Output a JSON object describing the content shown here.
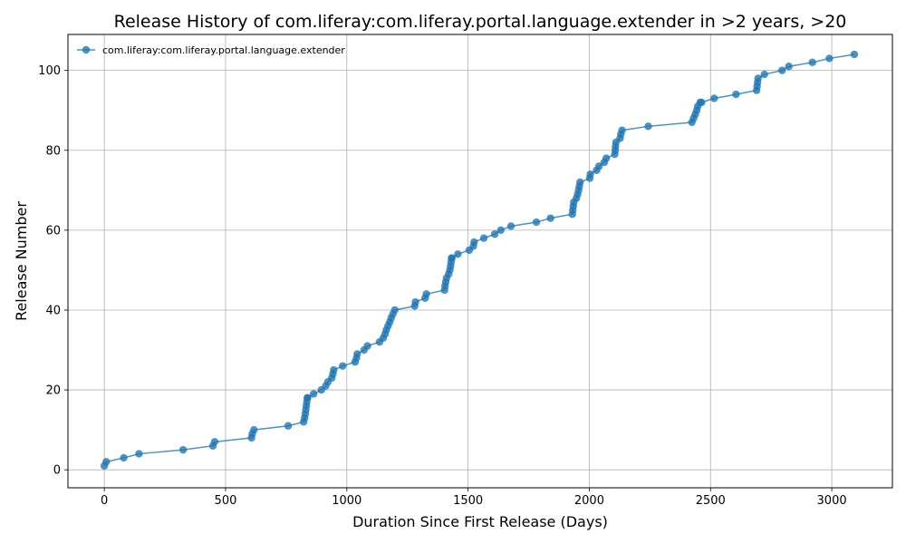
{
  "chart_data": {
    "type": "line",
    "title": "Release History of com.liferay:com.liferay.portal.language.extender in >2 years, >20",
    "xlabel": "Duration Since First Release (Days)",
    "ylabel": "Release Number",
    "xlim": [
      -150,
      3250
    ],
    "ylim": [
      -4.5,
      109
    ],
    "xticks": [
      0,
      500,
      1000,
      1500,
      2000,
      2500,
      3000
    ],
    "yticks": [
      0,
      20,
      40,
      60,
      80,
      100
    ],
    "grid": true,
    "legend_position": "top-left",
    "color": "#1f77b4",
    "series": [
      {
        "name": "com.liferay:com.liferay.portal.language.extender",
        "x": [
          0,
          8,
          80,
          143,
          325,
          448,
          455,
          607,
          610,
          617,
          758,
          822,
          826,
          829,
          831,
          833,
          835,
          837,
          838,
          863,
          895,
          913,
          922,
          938,
          943,
          946,
          983,
          1034,
          1040,
          1043,
          1071,
          1085,
          1135,
          1150,
          1158,
          1163,
          1170,
          1177,
          1183,
          1190,
          1198,
          1280,
          1283,
          1323,
          1328,
          1403,
          1405,
          1408,
          1411,
          1420,
          1425,
          1428,
          1430,
          1432,
          1433,
          1458,
          1505,
          1522,
          1525,
          1565,
          1610,
          1635,
          1677,
          1782,
          1840,
          1930,
          1932,
          1934,
          1936,
          1947,
          1952,
          1956,
          1959,
          1962,
          2002,
          2004,
          2030,
          2040,
          2062,
          2070,
          2105,
          2107,
          2108,
          2110,
          2127,
          2130,
          2135,
          2243,
          2423,
          2430,
          2437,
          2443,
          2447,
          2457,
          2463,
          2515,
          2605,
          2690,
          2692,
          2694,
          2696,
          2722,
          2795,
          2823,
          2920,
          2990,
          3093
        ],
        "y": [
          1,
          2,
          3,
          4,
          5,
          6,
          7,
          8,
          9,
          10,
          11,
          12,
          13,
          14,
          15,
          16,
          17,
          18,
          18,
          19,
          20,
          21,
          22,
          23,
          24,
          25,
          26,
          27,
          28,
          29,
          30,
          31,
          32,
          33,
          34,
          35,
          36,
          37,
          38,
          39,
          40,
          41,
          42,
          43,
          44,
          45,
          46,
          47,
          48,
          49,
          50,
          51,
          52,
          53,
          53,
          54,
          55,
          56,
          57,
          58,
          59,
          60,
          61,
          62,
          63,
          64,
          65,
          66,
          67,
          68,
          69,
          70,
          71,
          72,
          73,
          74,
          75,
          76,
          77,
          78,
          79,
          80,
          81,
          82,
          83,
          84,
          85,
          86,
          87,
          88,
          89,
          90,
          91,
          92,
          92,
          93,
          94,
          95,
          96,
          97,
          98,
          99,
          100,
          101,
          102,
          103,
          104
        ]
      }
    ]
  }
}
